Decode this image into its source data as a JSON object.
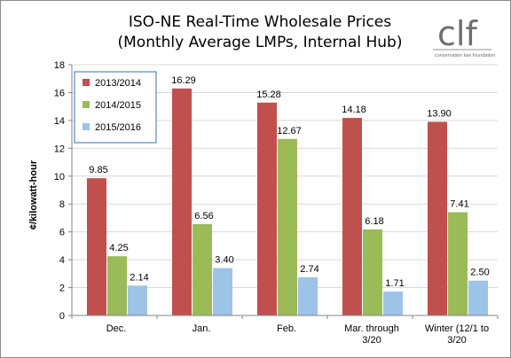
{
  "chart_data": {
    "type": "bar",
    "title": "ISO-NE Real-Time Wholesale Prices",
    "subtitle": "(Monthly Average LMPs, Internal Hub)",
    "xlabel": "",
    "ylabel": "¢/kilowatt-hour",
    "ylim": [
      0,
      18
    ],
    "yticks": [
      0,
      2,
      4,
      6,
      8,
      10,
      12,
      14,
      16,
      18
    ],
    "grid": true,
    "legend_position": "top-left",
    "categories": [
      [
        "Dec."
      ],
      [
        "Jan."
      ],
      [
        "Feb."
      ],
      [
        "Mar. through",
        "3/20"
      ],
      [
        "Winter (12/1 to",
        "3/20"
      ]
    ],
    "series": [
      {
        "name": "2013/2014",
        "color": "#c0504d",
        "values": [
          9.85,
          16.29,
          15.28,
          14.18,
          13.9
        ],
        "labels": [
          "9.85",
          "16.29",
          "15.28",
          "14.18",
          "13.90"
        ]
      },
      {
        "name": "2014/2015",
        "color": "#9bbb59",
        "values": [
          4.25,
          6.56,
          12.67,
          6.18,
          7.41
        ],
        "labels": [
          "4.25",
          "6.56",
          "12.67",
          "6.18",
          "7.41"
        ]
      },
      {
        "name": "2015/2016",
        "color": "#9dc3e6",
        "values": [
          2.14,
          3.4,
          2.74,
          1.71,
          2.5
        ],
        "labels": [
          "2.14",
          "3.40",
          "2.74",
          "1.71",
          "2.50"
        ]
      }
    ]
  },
  "logo": {
    "text": "clf",
    "tagline": "conservation law foundation",
    "icon": "clf-logo"
  }
}
